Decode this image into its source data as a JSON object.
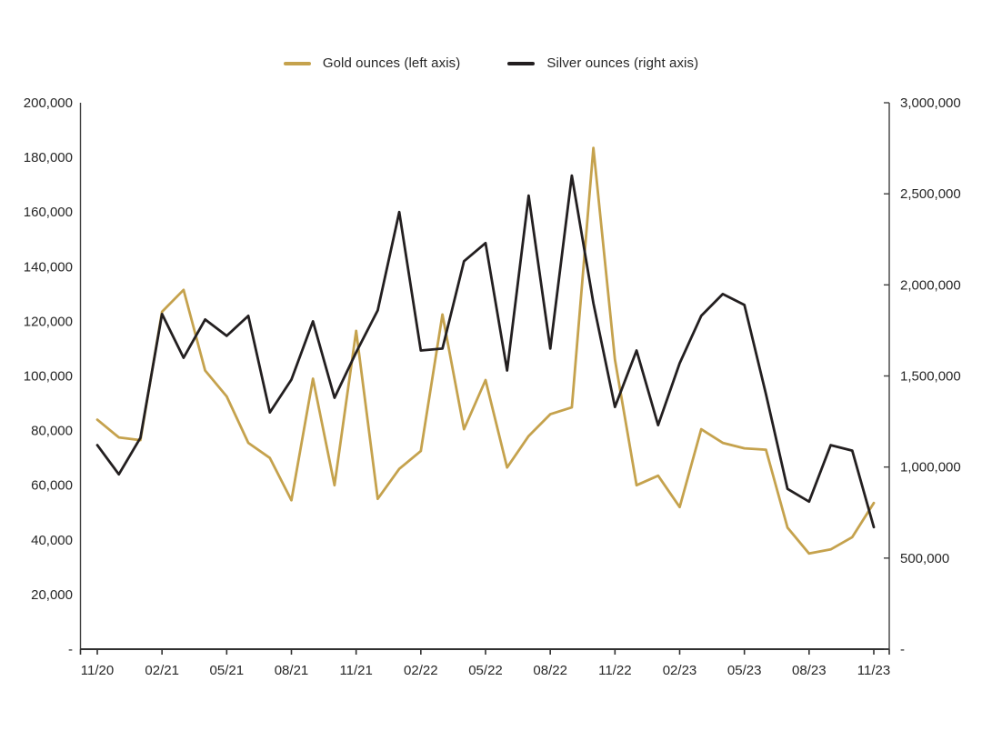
{
  "legend": {
    "items": [
      {
        "label": "Gold ounces (left axis)",
        "color": "#C5A24D"
      },
      {
        "label": "Silver ounces (right axis)",
        "color": "#231F20"
      }
    ]
  },
  "chart_data": {
    "type": "line",
    "title": "",
    "xlabel": "",
    "ylabel_left": "",
    "ylabel_right": "",
    "grid": false,
    "legend_position": "top-center",
    "x": [
      "11/20",
      "12/20",
      "01/21",
      "02/21",
      "03/21",
      "04/21",
      "05/21",
      "06/21",
      "07/21",
      "08/21",
      "09/21",
      "10/21",
      "11/21",
      "12/21",
      "01/22",
      "02/22",
      "03/22",
      "04/22",
      "05/22",
      "06/22",
      "07/22",
      "08/22",
      "09/22",
      "10/22",
      "11/22",
      "12/22",
      "01/23",
      "02/23",
      "03/23",
      "04/23",
      "05/23",
      "06/23",
      "07/23",
      "08/23",
      "09/23",
      "10/23",
      "11/23"
    ],
    "x_tick_labels": [
      "11/20",
      "02/21",
      "05/21",
      "08/21",
      "11/21",
      "02/22",
      "05/22",
      "08/22",
      "11/22",
      "02/23",
      "05/23",
      "08/23",
      "11/23"
    ],
    "series": [
      {
        "name": "Gold ounces (left axis)",
        "axis": "left",
        "color": "#C5A24D",
        "values": [
          84000,
          77500,
          76500,
          123500,
          131500,
          102000,
          92500,
          75500,
          70000,
          54500,
          99000,
          60000,
          116500,
          55000,
          66000,
          72500,
          122500,
          80500,
          98500,
          66500,
          78000,
          86000,
          88500,
          183500,
          106000,
          60000,
          63500,
          52000,
          80500,
          75500,
          73500,
          73000,
          44500,
          35000,
          36500,
          41000,
          53500
        ]
      },
      {
        "name": "Silver ounces (right axis)",
        "axis": "right",
        "color": "#231F20",
        "values": [
          1120000,
          960000,
          1160000,
          1840000,
          1600000,
          1810000,
          1720000,
          1830000,
          1300000,
          1480000,
          1800000,
          1380000,
          1630000,
          1860000,
          2400000,
          1640000,
          1650000,
          2130000,
          2230000,
          1530000,
          2490000,
          1650000,
          2600000,
          1900000,
          1330000,
          1640000,
          1230000,
          1570000,
          1830000,
          1950000,
          1890000,
          1400000,
          880000,
          810000,
          1120000,
          1090000,
          670000
        ]
      }
    ],
    "left_axis": {
      "min": 0,
      "max": 200000,
      "step": 20000,
      "tick_labels": [
        "200,000",
        "180,000",
        "160,000",
        "140,000",
        "120,000",
        "100,000",
        "80,000",
        "60,000",
        "40,000",
        "20,000",
        "-"
      ]
    },
    "right_axis": {
      "min": 0,
      "max": 3000000,
      "step": 500000,
      "tick_labels": [
        "3,000,000",
        "2,500,000",
        "2,000,000",
        "1,500,000",
        "1,000,000",
        "500,000",
        "-"
      ]
    },
    "axis_color": "#3F3F3F",
    "label_color": "#262626"
  }
}
